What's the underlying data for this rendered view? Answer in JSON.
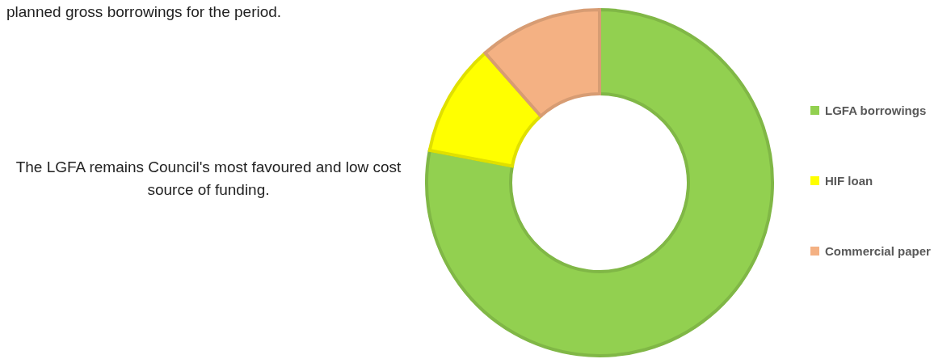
{
  "chart_data": {
    "type": "donut",
    "categories": [
      "LGFA borrowings",
      "HIF loan",
      "Commercial paper"
    ],
    "values": [
      78,
      10.5,
      11.5
    ],
    "colors": [
      "#92d050",
      "#ffff00",
      "#f4b183"
    ],
    "legend": "right",
    "annotations": [
      "planned gross borrowings for the period.",
      "The LGFA remains Council's most favoured and low cost source of funding."
    ]
  }
}
